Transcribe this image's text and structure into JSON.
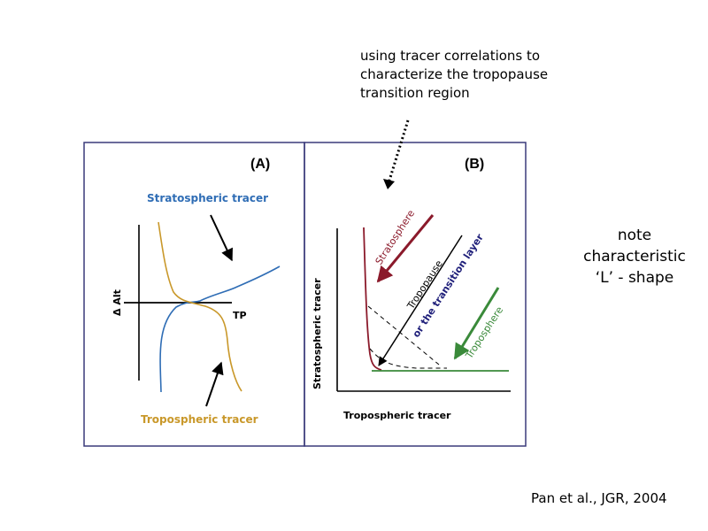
{
  "annotation_top": {
    "line1": "using tracer correlations to",
    "line2": "characterize the tropopause",
    "line3": "transition region"
  },
  "annotation_right": {
    "line1": "note",
    "line2": "characteristic",
    "line3": "‘L’ - shape"
  },
  "citation": "Pan et al., JGR, 2004",
  "panel_a": {
    "label": "(A)",
    "strat_label": "Stratospheric tracer",
    "trop_label": "Tropospheric tracer",
    "ylabel": "Δ Alt",
    "tp_label": "TP"
  },
  "panel_b": {
    "label": "(B)",
    "xlabel": "Tropospheric tracer",
    "ylabel": "Stratospheric tracer",
    "stratosphere_label": "Stratosphere",
    "tropopause_label": "Tropopause",
    "transition_label": "or the transition layer",
    "troposphere_label": "Troposphere"
  },
  "colors": {
    "frame": "#3a3a7a",
    "strat_blue": "#2f6db5",
    "trop_gold": "#c9982a",
    "strat_red": "#8b1a2b",
    "trop_green": "#3a8a3a",
    "navy": "#1f1f7a"
  }
}
